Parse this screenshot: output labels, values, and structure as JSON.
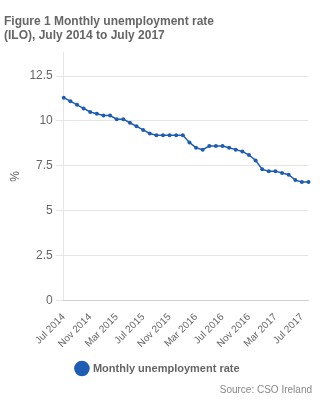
{
  "chart_data": {
    "type": "line",
    "title": [
      "Figure 1 Monthly unemployment rate",
      "(ILO), July 2014 to July 2017"
    ],
    "y_label": "%",
    "annotations": [
      "Source: CSO Ireland"
    ],
    "categories": [
      "Jul 2014",
      null,
      null,
      null,
      "Nov 2014",
      null,
      null,
      null,
      "Mar 2015",
      null,
      null,
      null,
      "Jul 2015",
      null,
      null,
      null,
      "Nov 2015",
      null,
      null,
      null,
      "Mar 2016",
      null,
      null,
      null,
      "Jul 2016",
      null,
      null,
      null,
      "Nov 2016",
      null,
      null,
      null,
      "Mar 2017",
      null,
      null,
      null,
      "Jul 2017",
      null
    ],
    "series": [
      {
        "name": "Monthly unemployment rate",
        "color": "#1f5cb4",
        "marker": "circle",
        "values": [
          11.3,
          11.1,
          10.9,
          10.7,
          10.5,
          10.4,
          10.3,
          10.3,
          10.1,
          10.1,
          9.9,
          9.7,
          9.5,
          9.3,
          9.2,
          9.2,
          9.2,
          9.2,
          9.2,
          8.8,
          8.5,
          8.4,
          8.6,
          8.6,
          8.6,
          8.5,
          8.4,
          8.3,
          8.1,
          7.8,
          7.3,
          7.2,
          7.2,
          7.1,
          7.0,
          6.7,
          6.6,
          6.6
        ]
      }
    ],
    "ylim": [
      0,
      13.8
    ],
    "yticks": [
      0,
      2.5,
      5,
      7.5,
      10,
      12.5
    ],
    "grid": "y",
    "legend": "bottom"
  }
}
